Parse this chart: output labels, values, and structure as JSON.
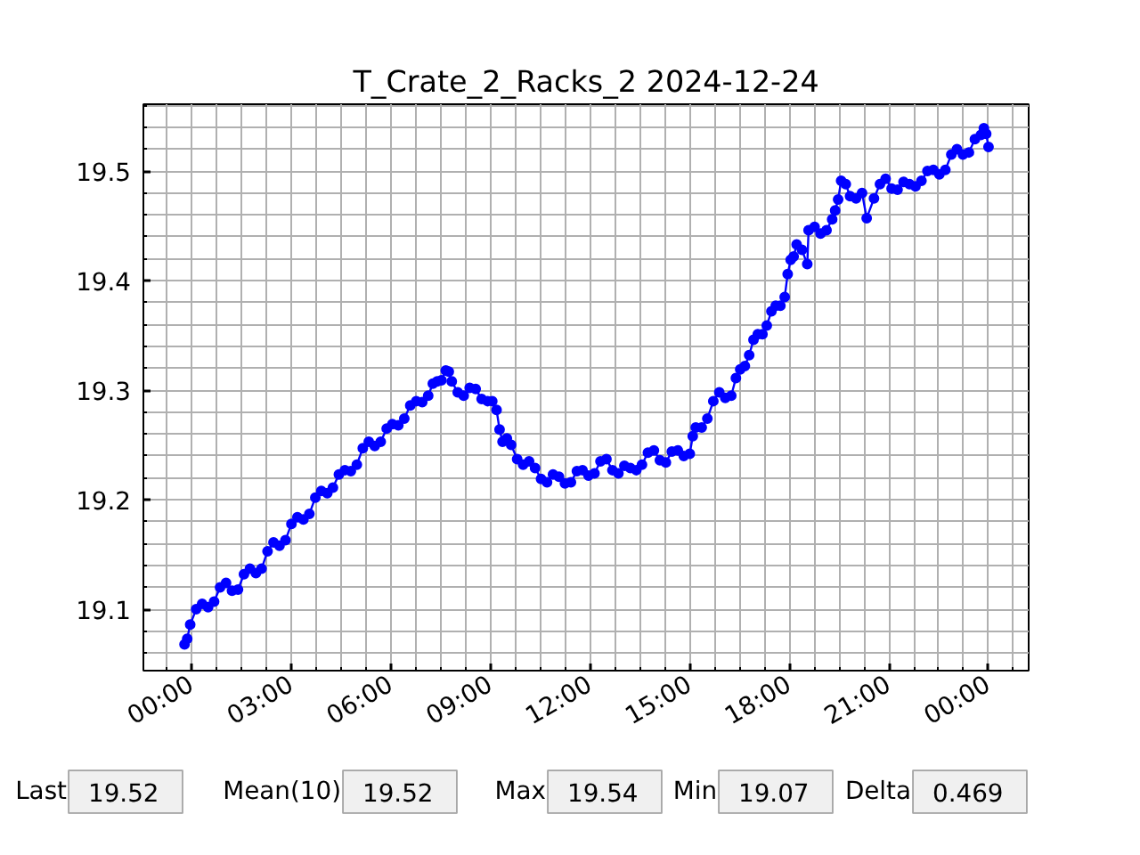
{
  "chart_data": {
    "type": "line",
    "title": "T_Crate_2_Racks_2 2024-12-24",
    "color": "#0000ff",
    "marker": "circle",
    "grid": true,
    "x": [
      -0.22,
      -0.14,
      -0.05,
      0.13,
      0.31,
      0.49,
      0.67,
      0.85,
      1.03,
      1.21,
      1.39,
      1.57,
      1.75,
      1.93,
      2.1,
      2.28,
      2.46,
      2.64,
      2.82,
      3.0,
      3.18,
      3.36,
      3.54,
      3.72,
      3.9,
      4.08,
      4.25,
      4.43,
      4.61,
      4.79,
      4.97,
      5.15,
      5.33,
      5.51,
      5.69,
      5.87,
      6.04,
      6.22,
      6.4,
      6.58,
      6.76,
      6.94,
      7.12,
      7.26,
      7.39,
      7.52,
      7.65,
      7.74,
      7.83,
      8.01,
      8.19,
      8.37,
      8.55,
      8.73,
      8.91,
      9.05,
      9.18,
      9.27,
      9.36,
      9.49,
      9.62,
      9.8,
      9.98,
      10.16,
      10.34,
      10.52,
      10.7,
      10.88,
      11.06,
      11.24,
      11.42,
      11.6,
      11.77,
      11.95,
      12.13,
      12.31,
      12.49,
      12.67,
      12.85,
      13.03,
      13.21,
      13.39,
      13.56,
      13.74,
      13.92,
      14.1,
      14.28,
      14.46,
      14.64,
      14.82,
      15.0,
      15.09,
      15.18,
      15.36,
      15.53,
      15.71,
      15.89,
      16.07,
      16.25,
      16.39,
      16.52,
      16.66,
      16.79,
      16.92,
      17.05,
      17.19,
      17.32,
      17.46,
      17.59,
      17.73,
      17.86,
      17.95,
      18.04,
      18.13,
      18.22,
      18.38,
      18.54,
      18.58,
      18.76,
      18.94,
      19.12,
      19.29,
      19.38,
      19.47,
      19.56,
      19.7,
      19.83,
      20.01,
      20.19,
      20.33,
      20.55,
      20.73,
      20.9,
      21.08,
      21.26,
      21.44,
      21.62,
      21.8,
      21.98,
      22.16,
      22.34,
      22.52,
      22.7,
      22.88,
      23.05,
      23.23,
      23.41,
      23.59,
      23.77,
      23.86,
      23.93,
      24.0
    ],
    "values": [
      19.068,
      19.073,
      19.086,
      19.1,
      19.105,
      19.102,
      19.107,
      19.12,
      19.124,
      19.117,
      19.118,
      19.132,
      19.137,
      19.133,
      19.137,
      19.153,
      19.161,
      19.158,
      19.163,
      19.178,
      19.184,
      19.182,
      19.187,
      19.202,
      19.208,
      19.206,
      19.211,
      19.223,
      19.227,
      19.226,
      19.232,
      19.247,
      19.253,
      19.249,
      19.253,
      19.265,
      19.269,
      19.268,
      19.274,
      19.286,
      19.29,
      19.289,
      19.295,
      19.306,
      19.308,
      19.309,
      19.318,
      19.317,
      19.308,
      19.298,
      19.295,
      19.302,
      19.301,
      19.292,
      19.29,
      19.29,
      19.282,
      19.264,
      19.253,
      19.256,
      19.25,
      19.237,
      19.232,
      19.235,
      19.229,
      19.219,
      19.216,
      19.223,
      19.221,
      19.215,
      19.216,
      19.226,
      19.227,
      19.222,
      19.224,
      19.235,
      19.237,
      19.227,
      19.224,
      19.231,
      19.229,
      19.227,
      19.232,
      19.243,
      19.245,
      19.236,
      19.234,
      19.244,
      19.245,
      19.24,
      19.242,
      19.258,
      19.266,
      19.266,
      19.274,
      19.29,
      19.298,
      19.293,
      19.295,
      19.311,
      19.319,
      19.322,
      19.332,
      19.346,
      19.351,
      19.351,
      19.359,
      19.372,
      19.377,
      19.377,
      19.385,
      19.406,
      19.419,
      19.422,
      19.433,
      19.428,
      19.415,
      19.446,
      19.449,
      19.443,
      19.446,
      19.456,
      19.464,
      19.474,
      19.491,
      19.488,
      19.477,
      19.475,
      19.48,
      19.457,
      19.475,
      19.488,
      19.493,
      19.484,
      19.483,
      19.49,
      19.488,
      19.486,
      19.491,
      19.5,
      19.501,
      19.497,
      19.501,
      19.515,
      19.52,
      19.515,
      19.517,
      19.529,
      19.533,
      19.539,
      19.534,
      19.522
    ],
    "xlim": [
      -1.46,
      25.21
    ],
    "ylim": [
      19.044,
      19.561
    ],
    "xticks": [
      {
        "value": -0.75,
        "label": null
      },
      {
        "value": 0,
        "label": "00:00"
      },
      {
        "value": 0.75,
        "label": null
      },
      {
        "value": 1.5,
        "label": null
      },
      {
        "value": 2.25,
        "label": null
      },
      {
        "value": 3,
        "label": "03:00"
      },
      {
        "value": 3.75,
        "label": null
      },
      {
        "value": 4.5,
        "label": null
      },
      {
        "value": 5.25,
        "label": null
      },
      {
        "value": 6,
        "label": "06:00"
      },
      {
        "value": 6.75,
        "label": null
      },
      {
        "value": 7.5,
        "label": null
      },
      {
        "value": 8.25,
        "label": null
      },
      {
        "value": 9,
        "label": "09:00"
      },
      {
        "value": 9.75,
        "label": null
      },
      {
        "value": 10.5,
        "label": null
      },
      {
        "value": 11.25,
        "label": null
      },
      {
        "value": 12,
        "label": "12:00"
      },
      {
        "value": 12.75,
        "label": null
      },
      {
        "value": 13.5,
        "label": null
      },
      {
        "value": 14.25,
        "label": null
      },
      {
        "value": 15,
        "label": "15:00"
      },
      {
        "value": 15.75,
        "label": null
      },
      {
        "value": 16.5,
        "label": null
      },
      {
        "value": 17.25,
        "label": null
      },
      {
        "value": 18,
        "label": "18:00"
      },
      {
        "value": 18.75,
        "label": null
      },
      {
        "value": 19.5,
        "label": null
      },
      {
        "value": 20.25,
        "label": null
      },
      {
        "value": 21,
        "label": "21:00"
      },
      {
        "value": 21.75,
        "label": null
      },
      {
        "value": 22.5,
        "label": null
      },
      {
        "value": 23.25,
        "label": null
      },
      {
        "value": 24,
        "label": "00:00"
      },
      {
        "value": 24.75,
        "label": null
      }
    ],
    "yticks": [
      {
        "value": 19.06,
        "label": null
      },
      {
        "value": 19.08,
        "label": null
      },
      19.1,
      {
        "value": 19.12,
        "label": null
      },
      {
        "value": 19.14,
        "label": null
      },
      {
        "value": 19.16,
        "label": null
      },
      {
        "value": 19.18,
        "label": null
      },
      19.2,
      {
        "value": 19.22,
        "label": null
      },
      {
        "value": 19.24,
        "label": null
      },
      {
        "value": 19.26,
        "label": null
      },
      {
        "value": 19.28,
        "label": null
      },
      19.3,
      {
        "value": 19.32,
        "label": null
      },
      {
        "value": 19.34,
        "label": null
      },
      {
        "value": 19.36,
        "label": null
      },
      {
        "value": 19.38,
        "label": null
      },
      19.4,
      {
        "value": 19.42,
        "label": null
      },
      {
        "value": 19.44,
        "label": null
      },
      {
        "value": 19.46,
        "label": null
      },
      {
        "value": 19.48,
        "label": null
      },
      19.5,
      {
        "value": 19.52,
        "label": null
      },
      {
        "value": 19.54,
        "label": null
      },
      {
        "value": 19.56,
        "label": null
      }
    ],
    "annotations": [
      "Last",
      "19.52",
      "Mean(10)",
      "19.52",
      "Max",
      "19.54",
      "Min",
      "19.07",
      "Delta",
      "0.469"
    ]
  }
}
